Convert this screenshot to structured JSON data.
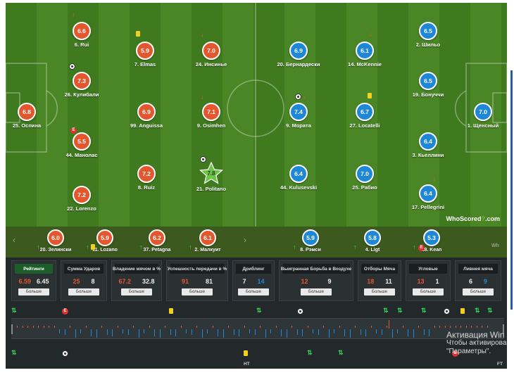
{
  "pitch": {
    "logo": {
      "who": "WhoScored",
      "q": "?",
      "dom": ".com"
    },
    "home_players": [
      {
        "rating": "6.6",
        "name": "6. Rui"
      },
      {
        "rating": "5.9",
        "name": "7. Elmas"
      },
      {
        "rating": "7.0",
        "name": "24. Инсинье"
      },
      {
        "rating": "7.3",
        "name": "26. Кулибали"
      },
      {
        "rating": "6.8",
        "name": "25. Оспина"
      },
      {
        "rating": "6.9",
        "name": "99. Anguissa"
      },
      {
        "rating": "7.1",
        "name": "9. Osimhen"
      },
      {
        "rating": "5.5",
        "name": "44. Манолас"
      },
      {
        "rating": "7.2",
        "name": "8. Ruiz"
      },
      {
        "rating": "7.8",
        "name": "21. Politano"
      },
      {
        "rating": "7.2",
        "name": "22. Lorenzo"
      }
    ],
    "away_players": [
      {
        "rating": "6.5",
        "name": "2. Шильо"
      },
      {
        "rating": "6.9",
        "name": "20. Бернардески"
      },
      {
        "rating": "6.1",
        "name": "14. McKennie"
      },
      {
        "rating": "6.5",
        "name": "19. Бонуччи"
      },
      {
        "rating": "7.4",
        "name": "9. Мората"
      },
      {
        "rating": "6.7",
        "name": "27. Locatelli"
      },
      {
        "rating": "7.0",
        "name": "1. Щенсный"
      },
      {
        "rating": "6.4",
        "name": "3. Кьеллини"
      },
      {
        "rating": "6.4",
        "name": "44. Kulusevski"
      },
      {
        "rating": "7.0",
        "name": "25. Рабио"
      },
      {
        "rating": "6.4",
        "name": "17. Pellegrini"
      }
    ],
    "events": {
      "e": "E"
    }
  },
  "subs": {
    "prev": "‹",
    "next": "›",
    "home": [
      {
        "rating": "6.0",
        "name": "20. Зелински"
      },
      {
        "rating": "5.9",
        "name": "11. Lozano"
      },
      {
        "rating": "6.2",
        "name": "37. Petagna"
      },
      {
        "rating": "6.1",
        "name": "2. Малкуит"
      }
    ],
    "away": [
      {
        "rating": "5.9",
        "name": "8. Рэмси"
      },
      {
        "rating": "5.8",
        "name": "4. Ligt"
      },
      {
        "rating": "5.3",
        "name": "18. Kean"
      }
    ],
    "partial_right": "Wh"
  },
  "stats": {
    "more_label": "Больше",
    "items": [
      {
        "title": "Рейтинги",
        "home": "6.59",
        "away": "6.45",
        "active": true
      },
      {
        "title": "Сумма Ударов",
        "home": "25",
        "away": "8"
      },
      {
        "title": "Владение мячом в %",
        "home": "67.2",
        "away": "32.8"
      },
      {
        "title": "Успешность передачи в %",
        "home": "91",
        "away": "81"
      },
      {
        "title": "Дриблинг",
        "home": "7",
        "away": "14"
      },
      {
        "title": "Выигранная Борьба в Воздухе",
        "home": "12",
        "away": "9"
      },
      {
        "title": "Отборы Мяча",
        "home": "18",
        "away": "11"
      },
      {
        "title": "Угловые",
        "home": "13",
        "away": "1"
      },
      {
        "title": "Ливнея мяча",
        "home": "6",
        "away": "9"
      }
    ],
    "ht": "HT",
    "ft": "FT",
    "e": "E"
  },
  "watermark": {
    "line1": "Активация Win",
    "line2": "Чтобы активирова",
    "line3": "\"Параметры\"."
  },
  "colors": {
    "home": "#e4572e",
    "away": "#1e88d6",
    "pitch": "#4a8625",
    "panel": "#23282a"
  }
}
